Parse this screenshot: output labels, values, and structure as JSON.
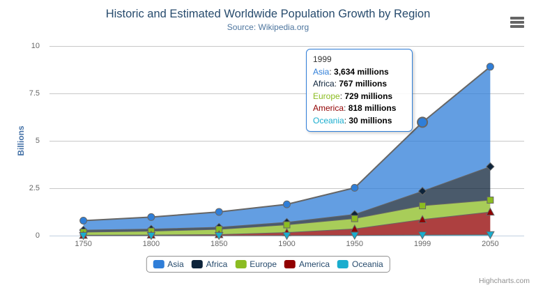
{
  "chart": {
    "title": "Historic and Estimated Worldwide Population Growth by Region",
    "subtitle": "Source: Wikipedia.org",
    "credits": "Highcharts.com"
  },
  "chart_data": {
    "type": "area",
    "stacked": true,
    "categories": [
      "1750",
      "1800",
      "1850",
      "1900",
      "1950",
      "1999",
      "2050"
    ],
    "series": [
      {
        "name": "Asia",
        "color": "#2f7ed8",
        "marker": "circle",
        "values": [
          502,
          635,
          809,
          947,
          1402,
          3634,
          5268
        ]
      },
      {
        "name": "Africa",
        "color": "#0d233a",
        "marker": "diamond",
        "values": [
          106,
          107,
          111,
          133,
          221,
          767,
          1766
        ]
      },
      {
        "name": "Europe",
        "color": "#8bbc21",
        "marker": "square",
        "values": [
          163,
          203,
          276,
          408,
          547,
          729,
          628
        ]
      },
      {
        "name": "America",
        "color": "#910000",
        "marker": "triangle",
        "values": [
          18,
          31,
          54,
          156,
          339,
          818,
          1201
        ]
      },
      {
        "name": "Oceania",
        "color": "#1aadce",
        "marker": "triangle-down",
        "values": [
          2,
          2,
          2,
          6,
          13,
          30,
          46
        ]
      }
    ],
    "values_unit": "millions",
    "ylabel": "Billions",
    "yticks": [
      0,
      2.5,
      5,
      7.5,
      10
    ],
    "ylim": [
      0,
      10
    ],
    "grid": true,
    "fill_opacity": 0.75,
    "legend_position": "bottom",
    "hovered": {
      "series": "Asia",
      "category": "1999",
      "series_index": 0,
      "point_index": 5
    }
  },
  "tooltip": {
    "header": "1999",
    "rows": [
      {
        "name": "Asia",
        "value": "3,634 millions",
        "color": "#2f7ed8"
      },
      {
        "name": "Africa",
        "value": "767 millions",
        "color": "#0d233a"
      },
      {
        "name": "Europe",
        "value": "729 millions",
        "color": "#8bbc21"
      },
      {
        "name": "America",
        "value": "818 millions",
        "color": "#910000"
      },
      {
        "name": "Oceania",
        "value": "30 millions",
        "color": "#1aadce"
      }
    ]
  },
  "colors": {
    "series_line": "#666666",
    "grid_line": "#C8C8C8",
    "axis_line": "#C0D0E0",
    "title_text": "#274b6d",
    "subtitle_text": "#4d759e",
    "axis_label_text": "#666666",
    "yaxis_title_text": "#4572A7",
    "legend_text": "#274b6d",
    "tooltip_border": "#2f7ed8",
    "credits_text": "#909090"
  }
}
